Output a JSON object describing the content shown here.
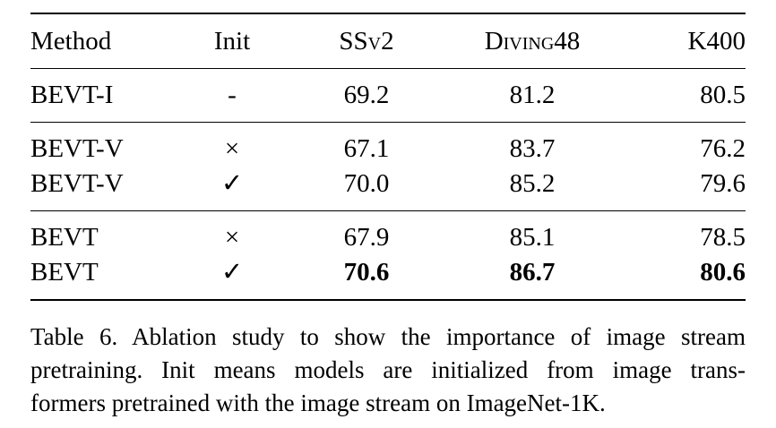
{
  "table": {
    "headers": {
      "method": "Method",
      "init": "Init",
      "ssv2": "SSv2",
      "diving": "Diving48",
      "k400": "K400"
    },
    "groups": [
      {
        "rows": [
          {
            "method": "BEVT-I",
            "init": "-",
            "ssv2": "69.2",
            "diving": "81.2",
            "k400": "80.5"
          }
        ]
      },
      {
        "rows": [
          {
            "method": "BEVT-V",
            "init": "×",
            "ssv2": "67.1",
            "diving": "83.7",
            "k400": "76.2"
          },
          {
            "method": "BEVT-V",
            "init": "✓",
            "ssv2": "70.0",
            "diving": "85.2",
            "k400": "79.6"
          }
        ]
      },
      {
        "rows": [
          {
            "method": "BEVT",
            "init": "×",
            "ssv2": "67.9",
            "diving": "85.1",
            "k400": "78.5"
          },
          {
            "method": "BEVT",
            "init": "✓",
            "ssv2": "70.6",
            "diving": "86.7",
            "k400": "80.6"
          }
        ]
      }
    ]
  },
  "caption": {
    "lines": [
      "Table 6. Ablation study to show the importance of image stream",
      "pretraining. Init means models are initialized from image trans-",
      "formers pretrained with the image stream on ImageNet-1K."
    ]
  }
}
